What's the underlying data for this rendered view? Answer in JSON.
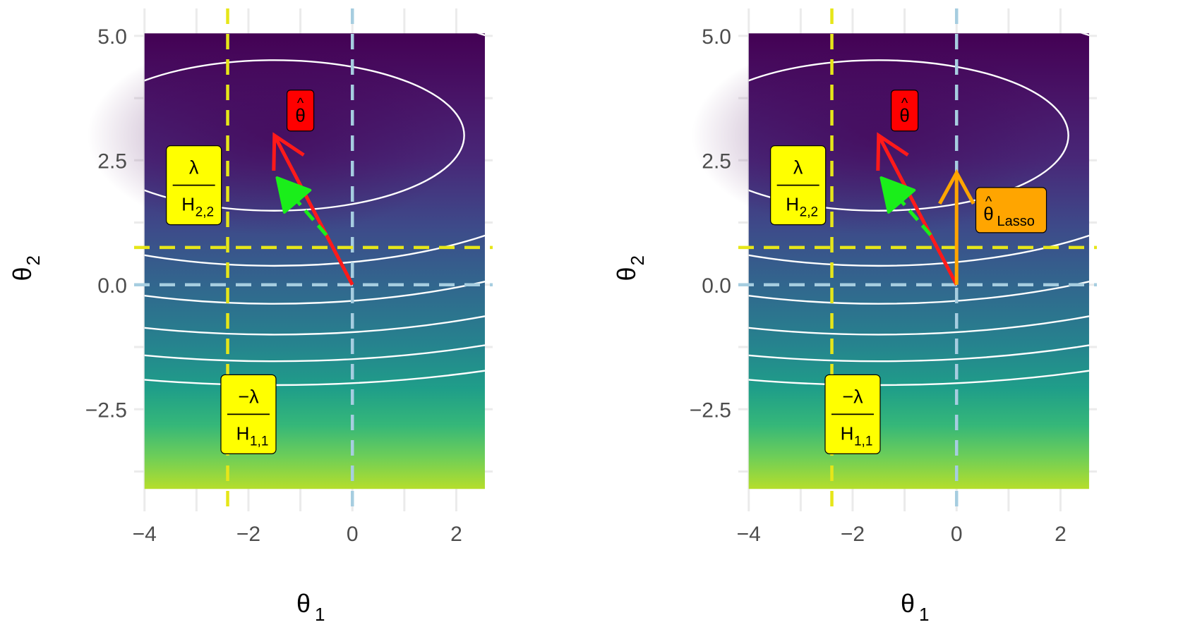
{
  "chart_data": [
    {
      "type": "contour",
      "xlabel": "θ",
      "xlabel_sub": "1",
      "ylabel": "θ",
      "ylabel_sub": "2",
      "xlim": [
        -4.2,
        2.7
      ],
      "ylim": [
        -4.55,
        5.55
      ],
      "x_ticks": [
        {
          "value": -4,
          "label": "−4"
        },
        {
          "value": -2,
          "label": "−2"
        },
        {
          "value": 0,
          "label": "0"
        },
        {
          "value": 2,
          "label": "2"
        }
      ],
      "y_ticks": [
        {
          "value": 5,
          "label": "5.0"
        },
        {
          "value": 2.5,
          "label": "2.5"
        },
        {
          "value": 0,
          "label": "0.0"
        },
        {
          "value": -2.5,
          "label": "−2.5"
        }
      ],
      "grid": true,
      "colorscale": "viridis",
      "surface": {
        "x_range": [
          -4,
          2.55
        ],
        "y_range": [
          -4.1,
          5.05
        ],
        "minimum": [
          -1.5,
          3.0
        ],
        "H11": 0.6,
        "H22": 3.5,
        "contour_levels": [
          4,
          12,
          20,
          28,
          36,
          44
        ]
      },
      "reference_lines": [
        {
          "name": "theta1-zero",
          "orientation": "vertical",
          "value": 0,
          "color": "#a6cde0",
          "style": "dashed"
        },
        {
          "name": "theta2-zero",
          "orientation": "horizontal",
          "value": 0,
          "color": "#a6cde0",
          "style": "dashed"
        },
        {
          "name": "minus-lambda-over-H11",
          "orientation": "vertical",
          "value": -2.4,
          "color": "#e6e619",
          "style": "dashed"
        },
        {
          "name": "lambda-over-H22",
          "orientation": "horizontal",
          "value": 0.75,
          "color": "#e6e619",
          "style": "dashed"
        }
      ],
      "arrows": [
        {
          "name": "theta-hat-arrow",
          "from": [
            0,
            0
          ],
          "to": [
            -1.5,
            3.0
          ],
          "color": "#ff1a1a",
          "style": "solid"
        },
        {
          "name": "gradient-step-arrow",
          "from": [
            -0.5,
            1.0
          ],
          "to": [
            -1.45,
            2.15
          ],
          "color": "#1aee1a",
          "style": "dashed"
        }
      ],
      "annotations": [
        {
          "name": "theta-hat-label",
          "kind": "theta-hat",
          "text": "θ",
          "hat": "^",
          "anchor": [
            -1.0,
            3.5
          ],
          "bg": "#ff0000"
        },
        {
          "name": "lambda-over-H22-label",
          "kind": "fraction",
          "numerator": "λ",
          "denominator": "H",
          "denominator_sub": "2,2",
          "anchor": [
            -3.05,
            2.0
          ],
          "bg": "#ffff00"
        },
        {
          "name": "minus-lambda-over-H11-label",
          "kind": "fraction",
          "numerator": "−λ",
          "denominator": "H",
          "denominator_sub": "1,1",
          "anchor": [
            -2.0,
            -2.6
          ],
          "bg": "#ffff00"
        }
      ]
    },
    {
      "type": "contour",
      "xlabel": "θ",
      "xlabel_sub": "1",
      "ylabel": "θ",
      "ylabel_sub": "2",
      "xlim": [
        -4.2,
        2.7
      ],
      "ylim": [
        -4.55,
        5.55
      ],
      "x_ticks": [
        {
          "value": -4,
          "label": "−4"
        },
        {
          "value": -2,
          "label": "−2"
        },
        {
          "value": 0,
          "label": "0"
        },
        {
          "value": 2,
          "label": "2"
        }
      ],
      "y_ticks": [
        {
          "value": 5,
          "label": "5.0"
        },
        {
          "value": 2.5,
          "label": "2.5"
        },
        {
          "value": 0,
          "label": "0.0"
        },
        {
          "value": -2.5,
          "label": "−2.5"
        }
      ],
      "grid": true,
      "colorscale": "viridis",
      "surface": {
        "x_range": [
          -4,
          2.55
        ],
        "y_range": [
          -4.1,
          5.05
        ],
        "minimum": [
          -1.5,
          3.0
        ],
        "H11": 0.6,
        "H22": 3.5,
        "contour_levels": [
          4,
          12,
          20,
          28,
          36,
          44
        ]
      },
      "reference_lines": [
        {
          "name": "theta1-zero",
          "orientation": "vertical",
          "value": 0,
          "color": "#a6cde0",
          "style": "dashed"
        },
        {
          "name": "theta2-zero",
          "orientation": "horizontal",
          "value": 0,
          "color": "#a6cde0",
          "style": "dashed"
        },
        {
          "name": "minus-lambda-over-H11",
          "orientation": "vertical",
          "value": -2.4,
          "color": "#e6e619",
          "style": "dashed"
        },
        {
          "name": "lambda-over-H22",
          "orientation": "horizontal",
          "value": 0.75,
          "color": "#e6e619",
          "style": "dashed"
        }
      ],
      "arrows": [
        {
          "name": "theta-hat-arrow",
          "from": [
            0,
            0
          ],
          "to": [
            -1.5,
            3.0
          ],
          "color": "#ff1a1a",
          "style": "solid"
        },
        {
          "name": "gradient-step-arrow",
          "from": [
            -0.5,
            1.0
          ],
          "to": [
            -1.45,
            2.15
          ],
          "color": "#1aee1a",
          "style": "dashed"
        },
        {
          "name": "lasso-arrow",
          "from": [
            0,
            0
          ],
          "to": [
            0,
            2.25
          ],
          "color": "#ffa500",
          "style": "solid"
        }
      ],
      "annotations": [
        {
          "name": "theta-hat-label",
          "kind": "theta-hat",
          "text": "θ",
          "hat": "^",
          "anchor": [
            -1.0,
            3.5
          ],
          "bg": "#ff0000"
        },
        {
          "name": "lambda-over-H22-label",
          "kind": "fraction",
          "numerator": "λ",
          "denominator": "H",
          "denominator_sub": "2,2",
          "anchor": [
            -3.05,
            2.0
          ],
          "bg": "#ffff00"
        },
        {
          "name": "minus-lambda-over-H11-label",
          "kind": "fraction",
          "numerator": "−λ",
          "denominator": "H",
          "denominator_sub": "1,1",
          "anchor": [
            -2.0,
            -2.6
          ],
          "bg": "#ffff00"
        },
        {
          "name": "theta-lasso-label",
          "kind": "theta-hat-sub",
          "text": "θ",
          "hat": "^",
          "sub": "Lasso",
          "anchor": [
            1.05,
            1.5
          ],
          "bg": "#ffa500"
        }
      ]
    }
  ]
}
